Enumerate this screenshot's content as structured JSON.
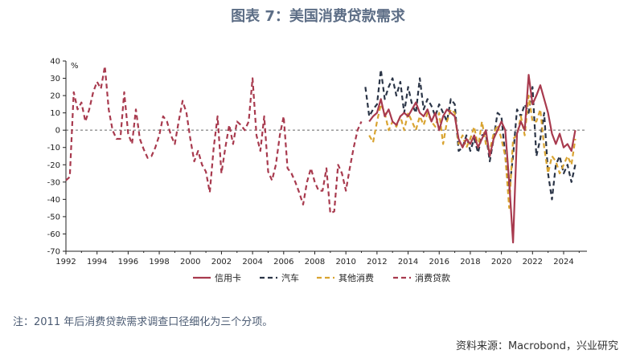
{
  "title": "图表 7：美国消费贷款需求",
  "note": "注：2011 年后消费贷款需求调查口径细化为三个分项。",
  "source": "资料来源：Macrobond，兴业研究",
  "chart_data": {
    "type": "line",
    "unit_label": "%",
    "ylim": [
      -70,
      40
    ],
    "yticks": [
      40,
      30,
      20,
      10,
      0,
      -10,
      -20,
      -30,
      -40,
      -50,
      -60,
      -70
    ],
    "xlim": [
      1992,
      2025.5
    ],
    "xticks": [
      "1992",
      "1994",
      "1996",
      "1998",
      "2000",
      "2002",
      "2004",
      "2006",
      "2008",
      "2010",
      "2012",
      "2014",
      "2016",
      "2018",
      "2020",
      "2022",
      "2024"
    ],
    "zero_line": true,
    "legend_position": "bottom",
    "series": [
      {
        "name": "消费贷款",
        "color": "#a83a4e",
        "dash": "dashed",
        "x": [
          1992.0,
          1992.25,
          1992.5,
          1992.75,
          1993.0,
          1993.25,
          1993.5,
          1993.75,
          1994.0,
          1994.25,
          1994.5,
          1994.75,
          1995.0,
          1995.25,
          1995.5,
          1995.75,
          1996.0,
          1996.25,
          1996.5,
          1996.75,
          1997.0,
          1997.25,
          1997.5,
          1997.75,
          1998.0,
          1998.25,
          1998.5,
          1998.75,
          1999.0,
          1999.25,
          1999.5,
          1999.75,
          2000.0,
          2000.25,
          2000.5,
          2000.75,
          2001.0,
          2001.25,
          2001.5,
          2001.75,
          2002.0,
          2002.25,
          2002.5,
          2002.75,
          2003.0,
          2003.25,
          2003.5,
          2003.75,
          2004.0,
          2004.25,
          2004.5,
          2004.75,
          2005.0,
          2005.25,
          2005.5,
          2005.75,
          2006.0,
          2006.25,
          2006.5,
          2006.75,
          2007.0,
          2007.25,
          2007.5,
          2007.75,
          2008.0,
          2008.25,
          2008.5,
          2008.75,
          2009.0,
          2009.25,
          2009.5,
          2009.75,
          2010.0,
          2010.25,
          2010.5,
          2010.75,
          2011.0
        ],
        "y": [
          -29,
          -27,
          22,
          12,
          16,
          5,
          12,
          22,
          28,
          24,
          37,
          12,
          0,
          -5,
          -5,
          22,
          -2,
          -8,
          12,
          -5,
          -11,
          -16,
          -15,
          -10,
          -3,
          8,
          5,
          -3,
          -8,
          5,
          17,
          10,
          -5,
          -18,
          -12,
          -20,
          -24,
          -36,
          -10,
          8,
          -25,
          -10,
          3,
          -8,
          5,
          3,
          0,
          5,
          30,
          -3,
          -12,
          8,
          -24,
          -29,
          -20,
          -3,
          8,
          -22,
          -25,
          -30,
          -36,
          -43,
          -30,
          -22,
          -30,
          -35,
          -35,
          -22,
          -48,
          -47,
          -20,
          -25,
          -35,
          -22,
          -10,
          0,
          5
        ]
      },
      {
        "name": "信用卡",
        "color": "#a83a4e",
        "dash": "solid",
        "x": [
          2011.5,
          2011.75,
          2012.0,
          2012.25,
          2012.5,
          2012.75,
          2013.0,
          2013.25,
          2013.5,
          2013.75,
          2014.0,
          2014.25,
          2014.5,
          2014.75,
          2015.0,
          2015.25,
          2015.5,
          2015.75,
          2016.0,
          2016.25,
          2016.5,
          2016.75,
          2017.0,
          2017.25,
          2017.5,
          2017.75,
          2018.0,
          2018.25,
          2018.5,
          2018.75,
          2019.0,
          2019.25,
          2019.5,
          2019.75,
          2020.0,
          2020.25,
          2020.5,
          2020.75,
          2021.0,
          2021.25,
          2021.5,
          2021.75,
          2022.0,
          2022.25,
          2022.5,
          2022.75,
          2023.0,
          2023.25,
          2023.5,
          2023.75,
          2024.0,
          2024.25,
          2024.5,
          2024.75
        ],
        "y": [
          5,
          8,
          10,
          18,
          8,
          12,
          5,
          3,
          8,
          10,
          8,
          12,
          16,
          10,
          8,
          12,
          5,
          10,
          0,
          8,
          12,
          10,
          8,
          -5,
          -10,
          -5,
          -8,
          -3,
          -10,
          -5,
          0,
          -15,
          -5,
          0,
          5,
          0,
          -30,
          -65,
          -2,
          5,
          0,
          32,
          15,
          20,
          26,
          18,
          10,
          -2,
          -8,
          -2,
          -10,
          -8,
          -12,
          0
        ]
      },
      {
        "name": "汽车",
        "color": "#2b3547",
        "dash": "dashed",
        "x": [
          2011.25,
          2011.5,
          2011.75,
          2012.0,
          2012.25,
          2012.5,
          2012.75,
          2013.0,
          2013.25,
          2013.5,
          2013.75,
          2014.0,
          2014.25,
          2014.5,
          2014.75,
          2015.0,
          2015.25,
          2015.5,
          2015.75,
          2016.0,
          2016.25,
          2016.5,
          2016.75,
          2017.0,
          2017.25,
          2017.5,
          2017.75,
          2018.0,
          2018.25,
          2018.5,
          2018.75,
          2019.0,
          2019.25,
          2019.5,
          2019.75,
          2020.0,
          2020.25,
          2020.5,
          2020.75,
          2021.0,
          2021.25,
          2021.5,
          2021.75,
          2022.0,
          2022.25,
          2022.5,
          2022.75,
          2023.0,
          2023.25,
          2023.5,
          2023.75,
          2024.0,
          2024.25,
          2024.5,
          2024.75
        ],
        "y": [
          25,
          8,
          12,
          15,
          35,
          18,
          25,
          30,
          20,
          28,
          10,
          25,
          15,
          10,
          30,
          12,
          18,
          14,
          8,
          15,
          10,
          5,
          18,
          15,
          -12,
          -10,
          -3,
          -12,
          -5,
          -13,
          -3,
          -2,
          -18,
          -5,
          10,
          8,
          -15,
          -35,
          -15,
          12,
          8,
          15,
          10,
          25,
          -15,
          -5,
          10,
          -25,
          -40,
          -20,
          -15,
          -25,
          -20,
          -30,
          -20
        ]
      },
      {
        "name": "其他消费",
        "color": "#d9a431",
        "dash": "dashed",
        "x": [
          2011.5,
          2011.75,
          2012.0,
          2012.25,
          2012.5,
          2012.75,
          2013.0,
          2013.25,
          2013.5,
          2013.75,
          2014.0,
          2014.25,
          2014.5,
          2014.75,
          2015.0,
          2015.25,
          2015.5,
          2015.75,
          2016.0,
          2016.25,
          2016.5,
          2016.75,
          2017.0,
          2017.25,
          2017.5,
          2017.75,
          2018.0,
          2018.25,
          2018.5,
          2018.75,
          2019.0,
          2019.25,
          2019.5,
          2019.75,
          2020.0,
          2020.25,
          2020.5,
          2020.75,
          2021.0,
          2021.25,
          2021.5,
          2021.75,
          2022.0,
          2022.25,
          2022.5,
          2022.75,
          2023.0,
          2023.25,
          2023.5,
          2023.75,
          2024.0,
          2024.25,
          2024.5,
          2024.75
        ],
        "y": [
          -3,
          -7,
          5,
          15,
          10,
          0,
          5,
          2,
          8,
          0,
          10,
          5,
          0,
          8,
          3,
          10,
          5,
          2,
          10,
          -8,
          5,
          12,
          10,
          -8,
          -3,
          -10,
          -5,
          2,
          -10,
          5,
          -8,
          -12,
          -2,
          3,
          -5,
          -15,
          -45,
          -5,
          -3,
          8,
          -3,
          20,
          5,
          5,
          12,
          -10,
          -25,
          -15,
          -18,
          -25,
          -20,
          -15,
          -20,
          -5
        ]
      }
    ]
  }
}
